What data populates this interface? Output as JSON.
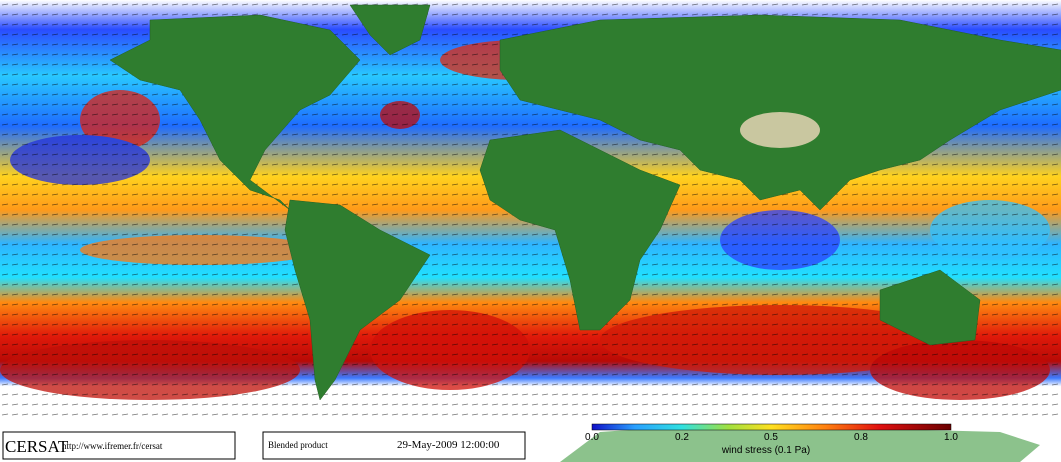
{
  "footer": {
    "logo": "CERSAT",
    "url": "http://www.ifremer.fr/cersat",
    "product": "Blended product",
    "timestamp": "29-May-2009 12:00:00"
  },
  "colorbar": {
    "ticks": [
      "0.0",
      "0.2",
      "0.5",
      "0.8",
      "1.0"
    ],
    "label": "wind stress (0.1 Pa)"
  }
}
